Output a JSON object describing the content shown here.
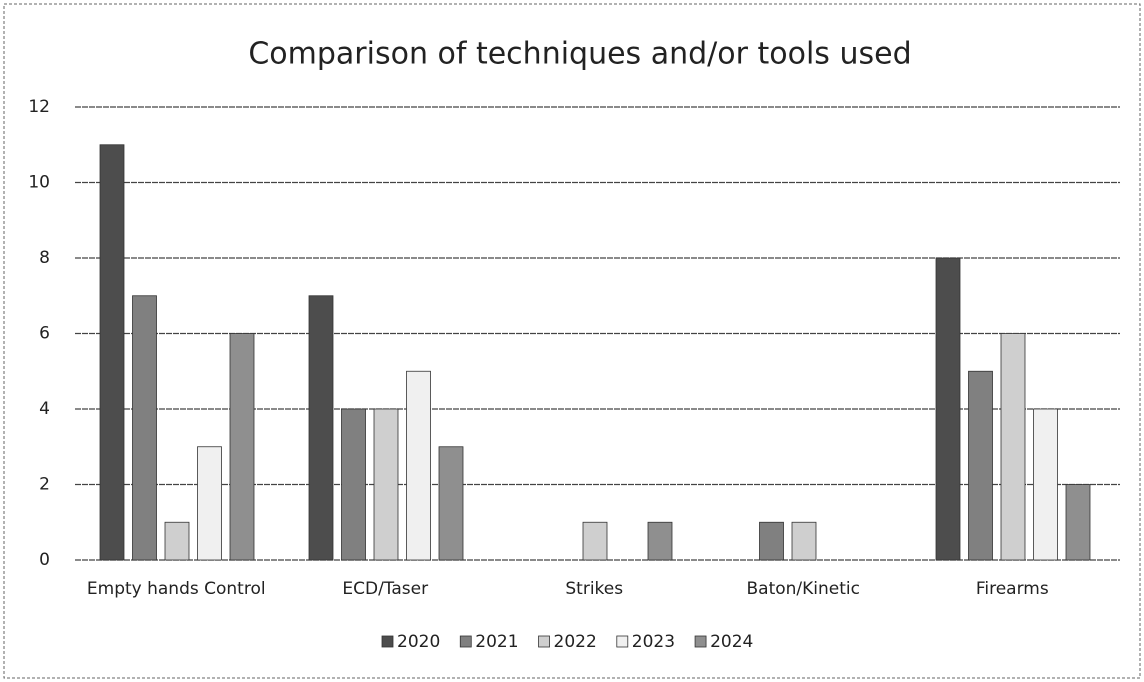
{
  "chart_data": {
    "type": "bar",
    "title": "Comparison of techniques and/or tools used",
    "categories": [
      "Empty hands Control",
      "ECD/Taser",
      "Strikes",
      "Baton/Kinetic",
      "Firearms"
    ],
    "series": [
      {
        "name": "2020",
        "color": "#4d4d4d",
        "values": [
          11,
          7,
          0,
          0,
          8
        ]
      },
      {
        "name": "2021",
        "color": "#808080",
        "values": [
          7,
          4,
          0,
          1,
          5
        ]
      },
      {
        "name": "2022",
        "color": "#cfcfcf",
        "values": [
          1,
          4,
          1,
          1,
          6
        ]
      },
      {
        "name": "2023",
        "color": "#f0f0f0",
        "values": [
          3,
          5,
          0,
          0,
          4
        ]
      },
      {
        "name": "2024",
        "color": "#8f8f8f",
        "values": [
          6,
          3,
          1,
          0,
          2
        ]
      }
    ],
    "ylim": [
      0,
      12
    ],
    "yticks": [
      0,
      2,
      4,
      6,
      8,
      10,
      12
    ],
    "grid": true,
    "legend": "bottom"
  }
}
